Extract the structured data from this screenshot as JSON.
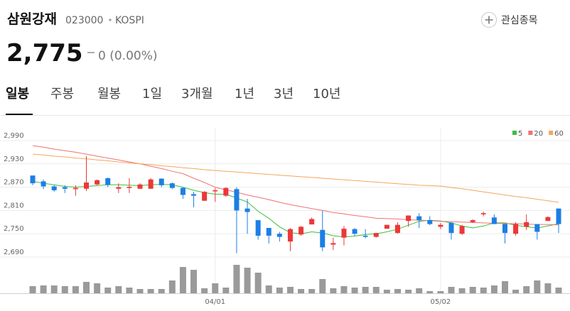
{
  "header": {
    "name": "삼원강재",
    "code": "023000",
    "market": "KOSPI",
    "watch_button": "관심종목",
    "price": "2,775",
    "change": "0 (0.00%)"
  },
  "tabs": [
    "일봉",
    "주봉",
    "월봉",
    "1일",
    "3개월",
    "1년",
    "3년",
    "10년"
  ],
  "active_tab": 0,
  "chart_data": {
    "type": "candlestick",
    "categories": [
      null,
      null,
      null,
      null,
      null,
      null,
      null,
      null,
      null,
      null,
      null,
      null,
      null,
      null,
      null,
      null,
      null,
      "04/01",
      null,
      null,
      null,
      null,
      null,
      null,
      null,
      null,
      null,
      null,
      null,
      null,
      null,
      null,
      null,
      null,
      null,
      null,
      null,
      null,
      "05/02",
      null,
      null,
      null,
      null,
      null,
      null,
      null,
      null,
      null,
      null,
      null
    ],
    "open": [
      2900,
      2885,
      2872,
      2870,
      2865,
      2866,
      2877,
      2893,
      2866,
      2868,
      2866,
      2866,
      2892,
      2880,
      2868,
      2852,
      2835,
      2860,
      2848,
      2865,
      2815,
      2785,
      2765,
      2750,
      2730,
      2748,
      2774,
      2760,
      2722,
      2740,
      2762,
      2745,
      2742,
      2763,
      2752,
      2783,
      2795,
      2785,
      2768,
      2778,
      2750,
      2780,
      2800,
      2792,
      2775,
      2750,
      2768,
      2775,
      2783,
      2815
    ],
    "high": [
      2900,
      2890,
      2875,
      2875,
      2875,
      2950,
      2890,
      2895,
      2880,
      2893,
      2880,
      2893,
      2893,
      2882,
      2870,
      2858,
      2860,
      2868,
      2870,
      2870,
      2840,
      2785,
      2765,
      2755,
      2765,
      2770,
      2792,
      2810,
      2740,
      2770,
      2765,
      2762,
      2752,
      2773,
      2780,
      2797,
      2803,
      2795,
      2778,
      2780,
      2773,
      2787,
      2807,
      2800,
      2775,
      2780,
      2800,
      2775,
      2795,
      2815
    ],
    "low": [
      2875,
      2865,
      2858,
      2855,
      2848,
      2860,
      2875,
      2870,
      2855,
      2855,
      2865,
      2866,
      2870,
      2865,
      2840,
      2818,
      2835,
      2832,
      2845,
      2700,
      2750,
      2735,
      2725,
      2730,
      2705,
      2745,
      2774,
      2705,
      2708,
      2720,
      2745,
      2738,
      2740,
      2763,
      2750,
      2768,
      2765,
      2772,
      2762,
      2735,
      2747,
      2778,
      2795,
      2775,
      2725,
      2745,
      2760,
      2735,
      2783,
      2752
    ],
    "close": [
      2880,
      2872,
      2862,
      2866,
      2868,
      2882,
      2888,
      2876,
      2870,
      2871,
      2877,
      2890,
      2875,
      2868,
      2850,
      2848,
      2858,
      2862,
      2868,
      2810,
      2806,
      2745,
      2745,
      2742,
      2762,
      2768,
      2788,
      2715,
      2726,
      2763,
      2750,
      2742,
      2752,
      2773,
      2773,
      2797,
      2785,
      2775,
      2773,
      2752,
      2770,
      2785,
      2803,
      2775,
      2752,
      2775,
      2780,
      2755,
      2793,
      2775
    ],
    "volume": [
      10,
      11,
      11,
      10,
      10,
      16,
      14,
      8,
      10,
      8,
      6,
      6,
      6,
      18,
      37,
      33,
      7,
      14,
      8,
      40,
      36,
      29,
      11,
      8,
      9,
      6,
      6,
      20,
      7,
      10,
      8,
      9,
      9,
      5,
      6,
      5,
      7,
      3,
      3,
      9,
      7,
      9,
      8,
      11,
      17,
      5,
      10,
      18,
      14,
      8
    ],
    "up_color": "#ed3738",
    "down_color": "#1c7ee6",
    "volume_color": "#9a9a9a",
    "series": [
      {
        "name": "5",
        "color": "#3cbf3c",
        "values": [
          2885,
          2880,
          2876,
          2872,
          2870,
          2872,
          2874,
          2876,
          2876,
          2875,
          2874,
          2876,
          2877,
          2876,
          2870,
          2862,
          2856,
          2852,
          2852,
          2842,
          2832,
          2808,
          2790,
          2768,
          2753,
          2750,
          2755,
          2752,
          2745,
          2742,
          2744,
          2748,
          2750,
          2755,
          2762,
          2772,
          2782,
          2785,
          2783,
          2778,
          2770,
          2765,
          2770,
          2778,
          2778,
          2772,
          2768,
          2765,
          2770,
          2776
        ]
      },
      {
        "name": "20",
        "color": "#f07272",
        "values": [
          2977,
          2973,
          2968,
          2964,
          2960,
          2955,
          2950,
          2945,
          2940,
          2935,
          2930,
          2924,
          2918,
          2911,
          2905,
          2893,
          2882,
          2870,
          2863,
          2857,
          2850,
          2844,
          2838,
          2831,
          2825,
          2820,
          2815,
          2810,
          2805,
          2801,
          2797,
          2794,
          2790,
          2789,
          2788,
          2786,
          2785,
          2784,
          2782,
          2781,
          2780,
          2779,
          2778,
          2777,
          2776,
          2776,
          2775,
          2774,
          2774,
          2773
        ]
      },
      {
        "name": "60",
        "color": "#f5a65b",
        "values": [
          2955,
          2953,
          2950,
          2948,
          2945,
          2943,
          2940,
          2938,
          2935,
          2933,
          2930,
          2928,
          2925,
          2923,
          2920,
          2918,
          2915,
          2913,
          2911,
          2909,
          2907,
          2905,
          2903,
          2901,
          2899,
          2897,
          2895,
          2893,
          2891,
          2889,
          2887,
          2885,
          2883,
          2881,
          2879,
          2877,
          2875,
          2874,
          2873,
          2869,
          2866,
          2862,
          2858,
          2854,
          2850,
          2846,
          2843,
          2839,
          2835,
          2831
        ]
      }
    ],
    "ylim": [
      2680,
      3020
    ],
    "yticks": [
      {
        "value": 2990,
        "label": "2,990"
      },
      {
        "value": 2930,
        "label": "2,930"
      },
      {
        "value": 2870,
        "label": "2,870"
      },
      {
        "value": 2810,
        "label": "2,810"
      },
      {
        "value": 2750,
        "label": "2,750"
      },
      {
        "value": 2690,
        "label": "2,690"
      }
    ],
    "grid": true,
    "legend": "top-right"
  }
}
